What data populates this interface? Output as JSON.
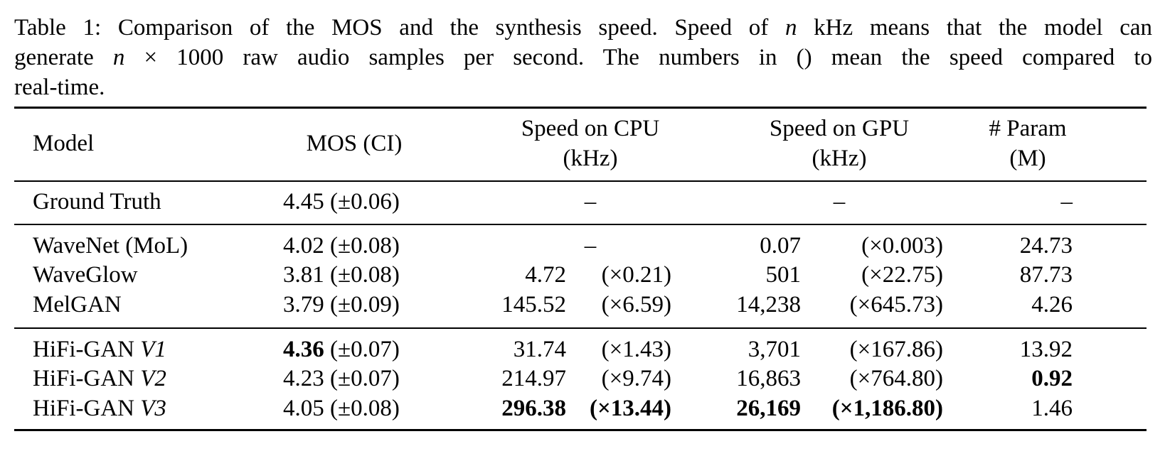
{
  "caption": {
    "line1_a": "Table 1: Comparison of the MOS and the synthesis speed. Speed of ",
    "line1_var": "n",
    "line1_b": " kHz means that the model can",
    "line2_a": "generate ",
    "line2_var": "n",
    "line2_b": " × 1000 raw audio samples per second. The numbers in () mean the speed compared to",
    "line3": "real-time."
  },
  "headers": {
    "model": "Model",
    "mos": "MOS (CI)",
    "cpu_line1": "Speed on CPU",
    "cpu_line2": "(kHz)",
    "gpu_line1": "Speed on GPU",
    "gpu_line2": "(kHz)",
    "param_line1": "# Param",
    "param_line2": "(M)"
  },
  "rows": [
    {
      "model": "Ground Truth",
      "model_suffix": "",
      "mos": "4.45",
      "mos_ci": " (±0.06)",
      "cpu": "–",
      "cpu_x": "",
      "gpu": "–",
      "gpu_x": "",
      "param": "–"
    },
    {
      "model": "WaveNet (MoL)",
      "model_suffix": "",
      "mos": "4.02",
      "mos_ci": " (±0.08)",
      "cpu": "–",
      "cpu_x": "",
      "gpu": "0.07",
      "gpu_x": "(×0.003)",
      "param": "24.73"
    },
    {
      "model": "WaveGlow",
      "model_suffix": "",
      "mos": "3.81",
      "mos_ci": " (±0.08)",
      "cpu": "4.72",
      "cpu_x": "(×0.21)",
      "gpu": "501",
      "gpu_x": "(×22.75)",
      "param": "87.73"
    },
    {
      "model": "MelGAN",
      "model_suffix": "",
      "mos": "3.79",
      "mos_ci": " (±0.09)",
      "cpu": "145.52",
      "cpu_x": "(×6.59)",
      "gpu": "14,238",
      "gpu_x": "(×645.73)",
      "param": "4.26"
    },
    {
      "model": "HiFi-GAN ",
      "model_suffix": "V1",
      "mos": "4.36",
      "mos_ci": " (±0.07)",
      "cpu": "31.74",
      "cpu_x": "(×1.43)",
      "gpu": "3,701",
      "gpu_x": "(×167.86)",
      "param": "13.92"
    },
    {
      "model": "HiFi-GAN ",
      "model_suffix": "V2",
      "mos": "4.23",
      "mos_ci": " (±0.07)",
      "cpu": "214.97",
      "cpu_x": "(×9.74)",
      "gpu": "16,863",
      "gpu_x": "(×764.80)",
      "param": "0.92"
    },
    {
      "model": "HiFi-GAN ",
      "model_suffix": "V3",
      "mos": "4.05",
      "mos_ci": " (±0.08)",
      "cpu": "296.38",
      "cpu_x": "(×13.44)",
      "gpu": "26,169",
      "gpu_x": "(×1,186.80)",
      "param": "1.46"
    }
  ]
}
